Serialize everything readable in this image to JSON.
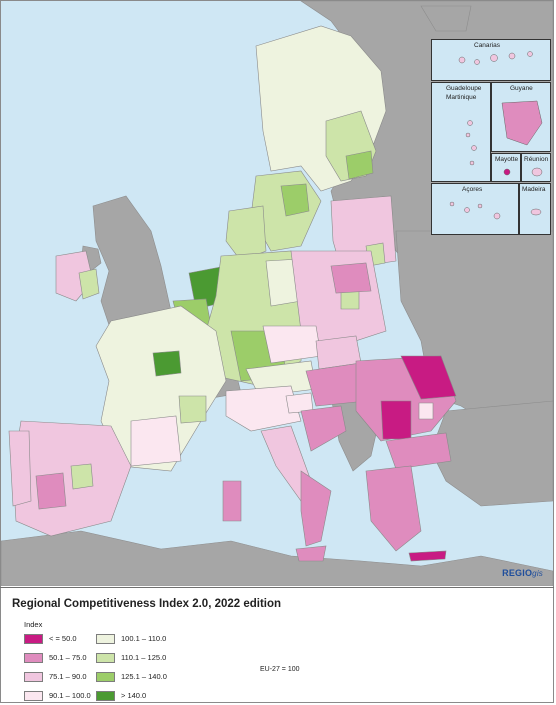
{
  "map": {
    "title": "Regional Competitiveness Index 2.0, 2022 edition",
    "logo_main": "REGIO",
    "logo_suffix": "gis",
    "insets": {
      "canarias": "Canarias",
      "guadeloupe_martinique": "Guadeloupe\nMartinique",
      "guyane": "Guyane",
      "mayotte": "Mayotte",
      "reunion": "Réunion",
      "acores": "Açores",
      "madeira": "Madeira"
    },
    "colors": {
      "sea": "#cfe7f4",
      "non_eu": "#a6a6a6",
      "borders": "#777777"
    }
  },
  "legend": {
    "index_label": "Index",
    "note": "EU-27 = 100",
    "classes": [
      {
        "label": "< = 50.0",
        "color": "#c81b83"
      },
      {
        "label": "50.1 – 75.0",
        "color": "#df8cbe"
      },
      {
        "label": "75.1 – 90.0",
        "color": "#f0c6df"
      },
      {
        "label": "90.1 – 100.0",
        "color": "#fbe7f0"
      },
      {
        "label": "100.1 – 110.0",
        "color": "#eef3df"
      },
      {
        "label": "110.1 – 125.0",
        "color": "#cde4a9"
      },
      {
        "label": "125.1 – 140.0",
        "color": "#9ccd69"
      },
      {
        "label": "> 140.0",
        "color": "#4b9a32"
      }
    ]
  }
}
